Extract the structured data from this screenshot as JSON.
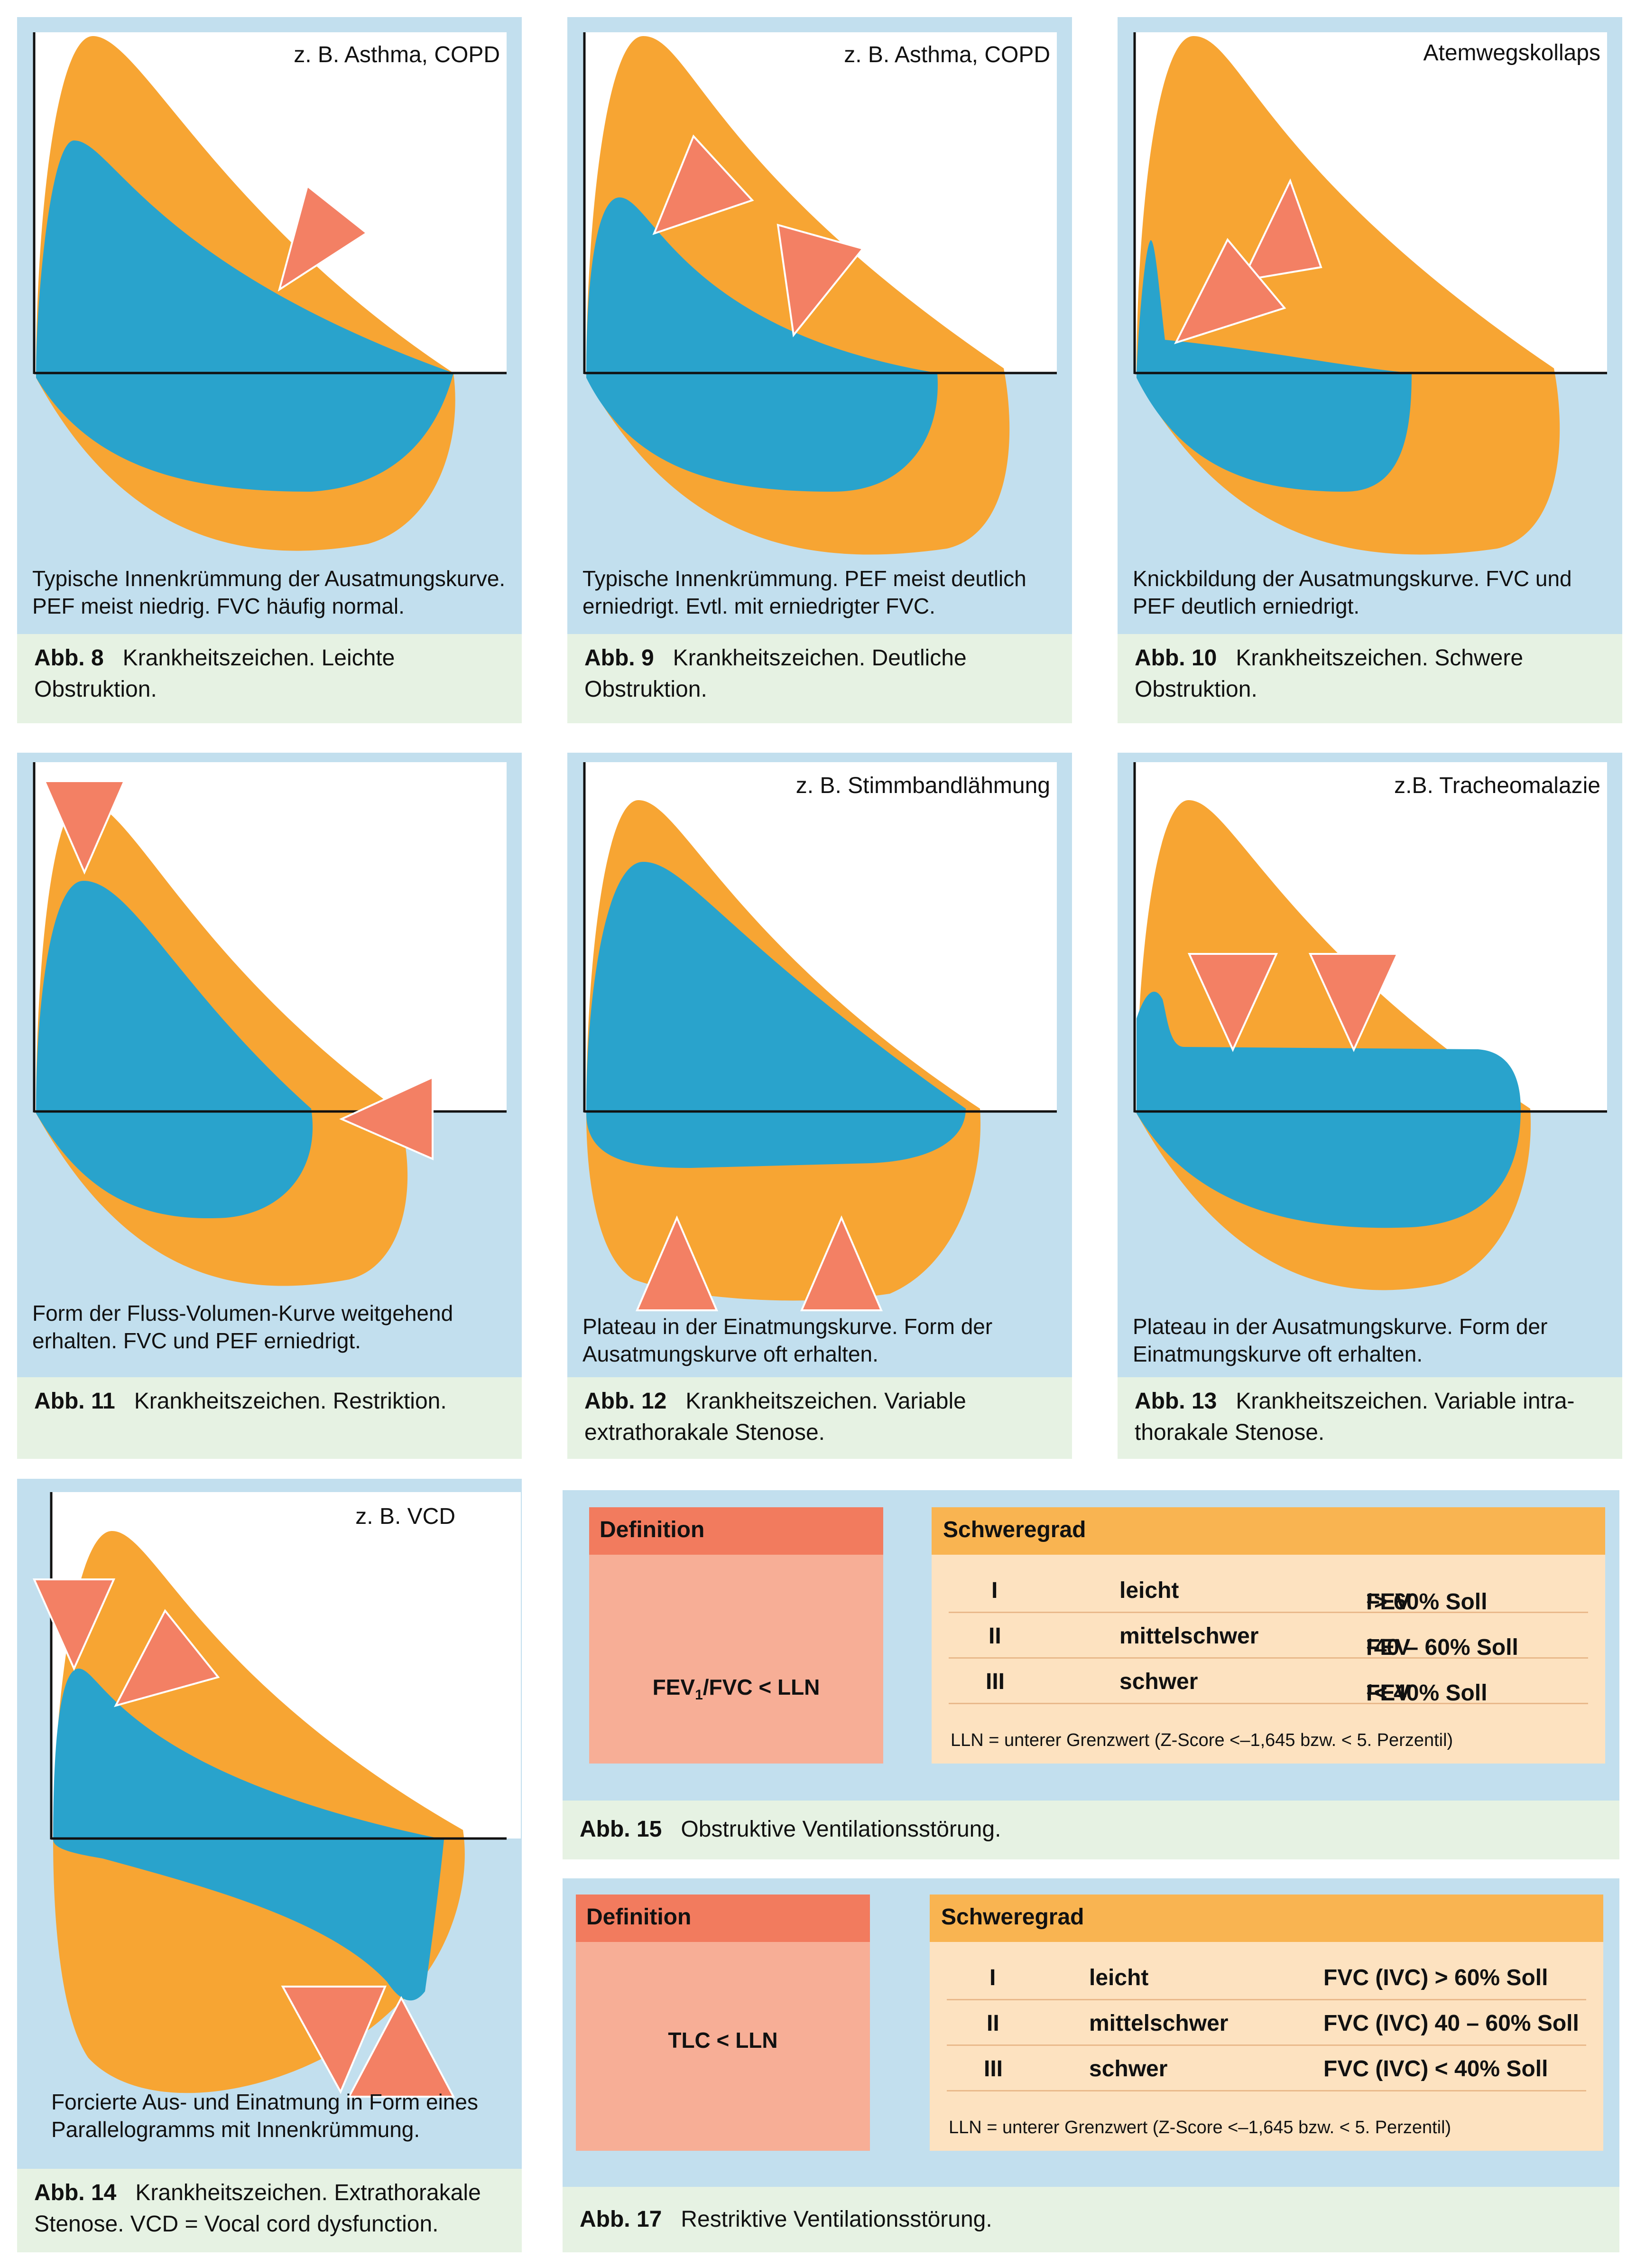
{
  "colors": {
    "orange": "#f7a533",
    "blue": "#29a3cc",
    "arrow": "#f38064",
    "panel_bg": "#c2dfee",
    "caption_bg": "#e6f2e3"
  },
  "figures": [
    {
      "id": "abb8",
      "corner_label": "z. B. Asthma, COPD",
      "desc": [
        "Typische Innenkrümmung der Ausatmungskurve.",
        "PEF meist niedrig. FVC häufig normal."
      ],
      "caption_num": "Abb. 8",
      "caption_text": "Krankheitszeichen. Leichte Obstruktion."
    },
    {
      "id": "abb9",
      "corner_label": "z. B. Asthma, COPD",
      "desc": [
        "Typische Innenkrümmung. PEF meist deutlich",
        "erniedrigt. Evtl. mit erniedrigter FVC."
      ],
      "caption_num": "Abb. 9",
      "caption_text": "Krankheitszeichen. Deutliche Obstruktion."
    },
    {
      "id": "abb10",
      "corner_label": "Atemwegskollaps",
      "desc": [
        "Knickbildung der Ausatmungskurve. FVC und",
        "PEF deutlich erniedrigt."
      ],
      "caption_num": "Abb. 10",
      "caption_text": "Krankheitszeichen. Schwere Obstruktion."
    },
    {
      "id": "abb11",
      "corner_label": "",
      "desc": [
        "Form der Fluss-Volumen-Kurve weitgehend",
        "erhalten. FVC und PEF erniedrigt."
      ],
      "caption_num": "Abb. 11",
      "caption_text": "Krankheitszeichen. Restriktion."
    },
    {
      "id": "abb12",
      "corner_label": "z. B. Stimmbandlähmung",
      "desc": [
        "Plateau in der Einatmungskurve. Form der",
        "Ausatmungskurve oft erhalten."
      ],
      "caption_num": "Abb. 12",
      "caption_text": "Krankheitszeichen. Variable extrathorakale Stenose."
    },
    {
      "id": "abb13",
      "corner_label": "z.B. Tracheomalazie",
      "desc": [
        "Plateau in der Ausatmungskurve. Form der",
        "Einatmungskurve oft erhalten."
      ],
      "caption_num": "Abb. 13",
      "caption_text": "Krankheitszeichen. Variable intra- thorakale Stenose."
    },
    {
      "id": "abb14",
      "corner_label": "z. B. VCD",
      "desc": [
        "Forcierte Aus- und Einatmung in Form eines",
        "Parallelogramms mit Innenkrümmung."
      ],
      "caption_num": "Abb. 14",
      "caption_text": "Krankheitszeichen. Extrathorakale Stenose. VCD = Vocal cord dysfunction."
    }
  ],
  "tables": [
    {
      "id": "abb15",
      "definition_header": "Definition",
      "definition_pre": "FEV",
      "definition_sub": "1",
      "definition_post": "/FVC < LLN",
      "severity_header": "Schweregrad",
      "rows": [
        {
          "grade": "I",
          "label": "leicht",
          "crit_pre": "FEV",
          "crit_sub": "1",
          "crit_post": " > 60% Soll"
        },
        {
          "grade": "II",
          "label": "mittelschwer",
          "crit_pre": "FEV",
          "crit_sub": "1",
          "crit_post": " 40 – 60% Soll"
        },
        {
          "grade": "III",
          "label": "schwer",
          "crit_pre": "FEV",
          "crit_sub": "1",
          "crit_post": " < 40% Soll"
        }
      ],
      "note": "LLN = unterer Grenzwert (Z-Score <–1,645 bzw. < 5. Perzentil)",
      "caption_num": "Abb. 15",
      "caption_text": "Obstruktive Ventilationsstörung."
    },
    {
      "id": "abb17",
      "definition_header": "Definition",
      "definition_pre": "TLC < LLN",
      "definition_sub": "",
      "definition_post": "",
      "severity_header": "Schweregrad",
      "rows": [
        {
          "grade": "I",
          "label": "leicht",
          "crit_pre": "FVC (IVC) > 60% Soll",
          "crit_sub": "",
          "crit_post": ""
        },
        {
          "grade": "II",
          "label": "mittelschwer",
          "crit_pre": "FVC (IVC) 40 – 60% Soll",
          "crit_sub": "",
          "crit_post": ""
        },
        {
          "grade": "III",
          "label": "schwer",
          "crit_pre": "FVC (IVC) < 40% Soll",
          "crit_sub": "",
          "crit_post": ""
        }
      ],
      "note": "LLN = unterer Grenzwert (Z-Score <–1,645 bzw. < 5. Perzentil)",
      "caption_num": "Abb. 17",
      "caption_text": "Restriktive Ventilationsstörung."
    }
  ]
}
